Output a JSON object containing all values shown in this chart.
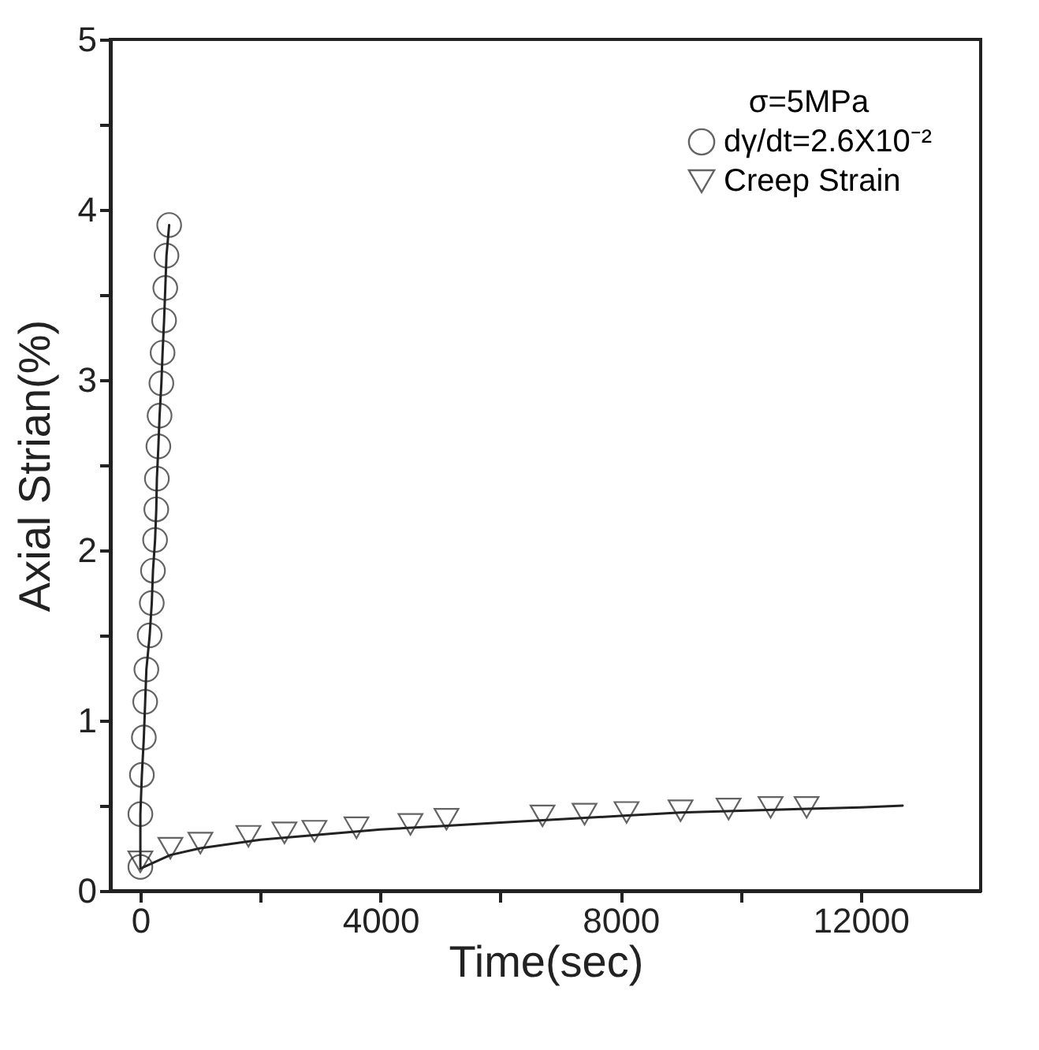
{
  "chart_data": {
    "type": "line",
    "xlabel": "Time(sec)",
    "ylabel": "Axial Strian(%)",
    "legend_title": "σ=5MPa",
    "legend": "top right",
    "xlim": [
      -500,
      14000
    ],
    "ylim": [
      0,
      5
    ],
    "xticks": [
      0,
      {
        "value": 2000,
        "label": null
      },
      4000,
      {
        "value": 6000,
        "label": null
      },
      8000,
      {
        "value": 10000,
        "label": null
      },
      12000
    ],
    "yticks": [
      0,
      {
        "value": 0.5,
        "label": null
      },
      1,
      {
        "value": 1.5,
        "label": null
      },
      2,
      {
        "value": 2.5,
        "label": null
      },
      3,
      {
        "value": 3.5,
        "label": null
      },
      4,
      {
        "value": 4.5,
        "label": null
      },
      5
    ],
    "grid": false,
    "series": [
      {
        "name": "dγ/dt=2.6X10⁻²",
        "marker": "circle",
        "color": "#222222",
        "x": [
          0,
          0,
          25,
          58,
          80,
          100,
          155,
          190,
          210,
          245,
          265,
          275,
          300,
          320,
          350,
          370,
          395,
          415,
          435,
          480
        ],
        "values": [
          0.14,
          0.45,
          0.68,
          0.9,
          1.11,
          1.3,
          1.5,
          1.69,
          1.88,
          2.06,
          2.24,
          2.42,
          2.61,
          2.79,
          2.98,
          3.16,
          3.35,
          3.54,
          3.73,
          3.91
        ]
      },
      {
        "name": "Creep Strain",
        "type": "scatter",
        "marker": "triangle",
        "color": "#222222",
        "x": [
          0,
          500,
          1000,
          1800,
          2400,
          2900,
          3600,
          4500,
          5100,
          6700,
          7400,
          8100,
          9000,
          9800,
          10500,
          11100
        ],
        "values": [
          0.17,
          0.25,
          0.28,
          0.32,
          0.34,
          0.35,
          0.37,
          0.39,
          0.42,
          0.44,
          0.45,
          0.46,
          0.47,
          0.48,
          0.49,
          0.49
        ]
      },
      {
        "type": "line",
        "marker": "none",
        "color": "#222222",
        "x": [
          0,
          500,
          1000,
          2000,
          3000,
          4000,
          5000,
          6000,
          7000,
          8000,
          9000,
          10000,
          11000,
          12000,
          12700
        ],
        "values": [
          0.13,
          0.21,
          0.25,
          0.3,
          0.33,
          0.36,
          0.38,
          0.4,
          0.42,
          0.44,
          0.46,
          0.47,
          0.48,
          0.49,
          0.5
        ]
      }
    ]
  }
}
